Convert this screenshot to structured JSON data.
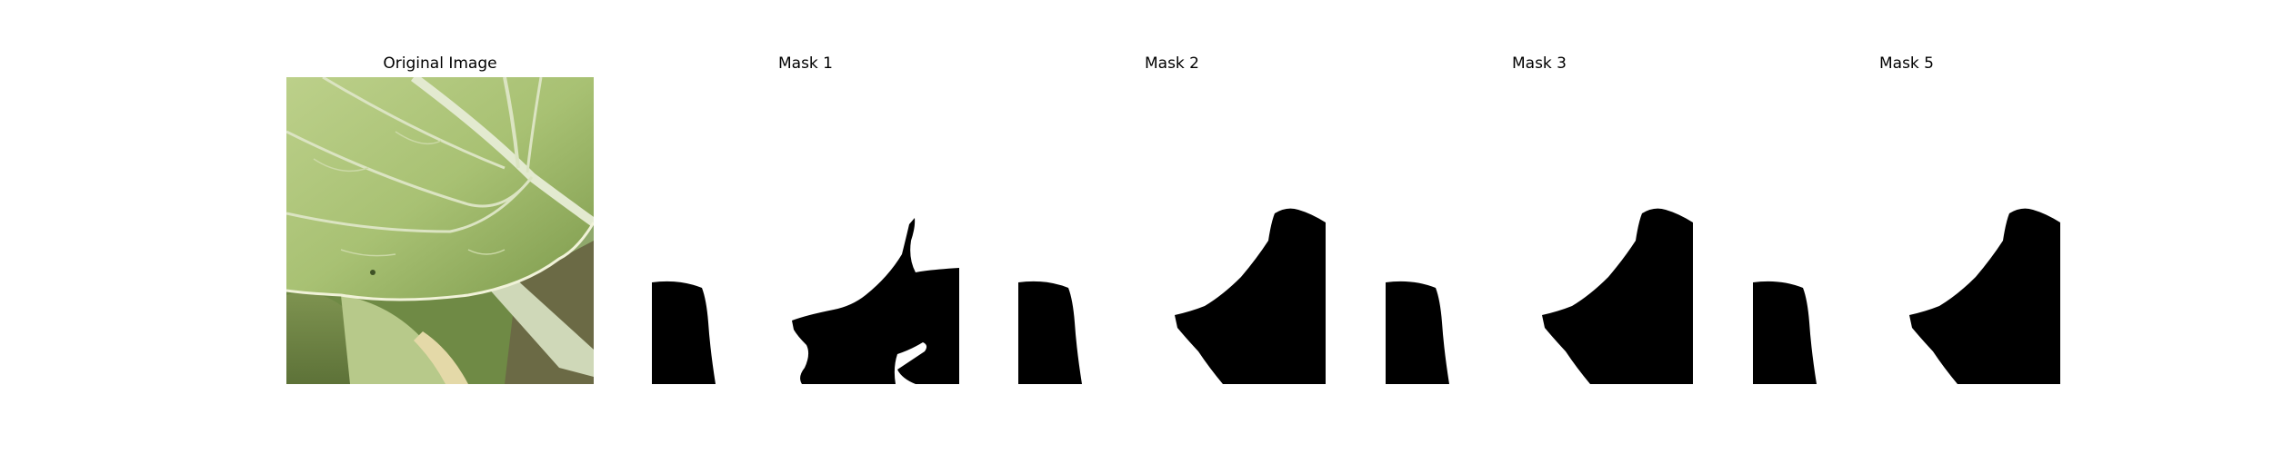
{
  "figure": {
    "panels": [
      {
        "id": "original",
        "title": "Original Image"
      },
      {
        "id": "mask-1",
        "title": "Mask 1"
      },
      {
        "id": "mask-2",
        "title": "Mask 2"
      },
      {
        "id": "mask-3",
        "title": "Mask 3"
      },
      {
        "id": "mask-5",
        "title": "Mask 5"
      }
    ]
  },
  "colors": {
    "background": "#ffffff",
    "mask_fill": "#000000",
    "leaf_light": "#c9d98f",
    "leaf_mid": "#9fb86a",
    "leaf_dark": "#5f7a3a",
    "vein": "#e3ead0"
  }
}
